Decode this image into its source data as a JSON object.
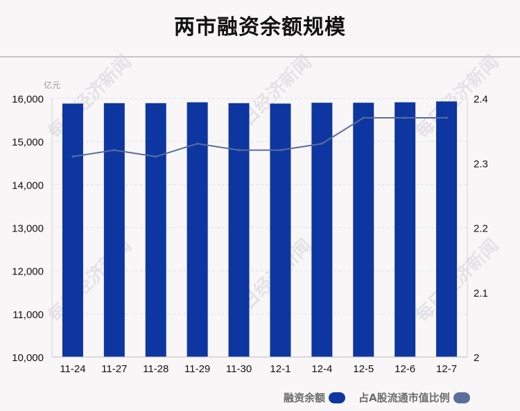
{
  "title": "两市融资余额规模",
  "unit_left": "亿元",
  "watermark": "每日经济新闻",
  "colors": {
    "bar": "#0d36a0",
    "line": "#5a6e9c",
    "grid": "#e2dfe2",
    "axis_text": "#111111"
  },
  "legend": {
    "bar_label": "融资余额",
    "line_label": "占A股流通市值比例"
  },
  "chart_data": {
    "type": "bar",
    "title": "两市融资余额规模",
    "categories": [
      "11-24",
      "11-27",
      "11-28",
      "11-29",
      "11-30",
      "12-1",
      "12-4",
      "12-5",
      "12-6",
      "12-7"
    ],
    "series": [
      {
        "name": "融资余额",
        "type": "bar",
        "axis": "left",
        "values": [
          15880,
          15890,
          15890,
          15910,
          15890,
          15880,
          15900,
          15900,
          15910,
          15930
        ]
      },
      {
        "name": "占A股流通市值比例",
        "type": "line",
        "axis": "right",
        "values": [
          2.31,
          2.32,
          2.31,
          2.33,
          2.32,
          2.32,
          2.33,
          2.37,
          2.37,
          2.37
        ]
      }
    ],
    "ylim_left": [
      10000,
      16000
    ],
    "yticks_left": [
      "10,000",
      "11,000",
      "12,000",
      "13,000",
      "14,000",
      "15,000",
      "16,000"
    ],
    "ylim_right": [
      2,
      2.4
    ],
    "yticks_right": [
      "2",
      "2.1",
      "2.2",
      "2.3",
      "2.4"
    ],
    "grid": true,
    "legend_position": "bottom-right"
  }
}
